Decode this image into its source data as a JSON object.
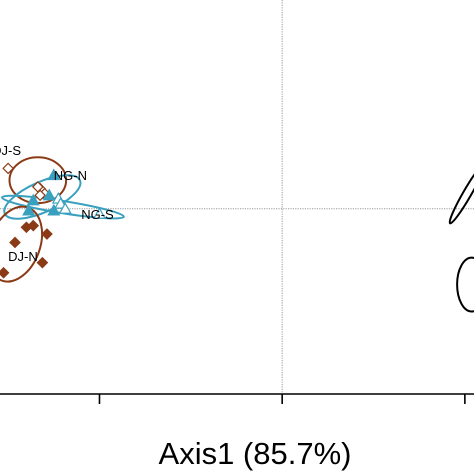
{
  "chart_data": {
    "type": "scatter",
    "xlabel": "Axis1 (85.7%)",
    "ylabel": "",
    "title": "",
    "xlim": [
      -0.62,
      0.42
    ],
    "ylim": [
      -0.55,
      0.62
    ],
    "grid": false,
    "reference_lines": {
      "x": 0,
      "y": 0
    },
    "colors": {
      "brown": "#8b3a16",
      "teal": "#3aa0bf",
      "black": "#000000"
    },
    "groups": [
      {
        "name": "DJ-S",
        "color": "#8b3a16",
        "marker": "diamond-open",
        "points": [
          [
            -0.6,
            0.12
          ],
          [
            -0.53,
            0.06
          ],
          [
            -0.535,
            0.065
          ],
          [
            -0.52,
            0.045
          ],
          [
            -0.53,
            0.04
          ]
        ],
        "ellipse": {
          "cx": -0.535,
          "cy": 0.085,
          "rx": 0.062,
          "ry": 0.068,
          "angle": 0
        }
      },
      {
        "name": "NG-N",
        "color": "#3aa0bf",
        "marker": "triangle",
        "points": [
          [
            -0.5,
            0.1
          ],
          [
            -0.545,
            0.025
          ],
          [
            -0.51,
            0.04
          ],
          [
            -0.5,
            -0.005
          ],
          [
            -0.555,
            -0.005
          ]
        ],
        "ellipse": {
          "cx": -0.525,
          "cy": 0.035,
          "rx": 0.09,
          "ry": 0.045,
          "angle": -24
        }
      },
      {
        "name": "NG-S",
        "color": "#3aa0bf",
        "marker": "triangle-open",
        "points": [
          [
            -0.49,
            0.03
          ],
          [
            -0.485,
            0.015
          ],
          [
            -0.475,
            0.0
          ],
          [
            -0.4,
            -0.015
          ]
        ],
        "ellipse": {
          "cx": -0.48,
          "cy": 0.005,
          "rx": 0.135,
          "ry": 0.018,
          "angle": 9
        }
      },
      {
        "name": "DJ-N",
        "color": "#8b3a16",
        "marker": "diamond",
        "points": [
          [
            -0.545,
            -0.05
          ],
          [
            -0.56,
            -0.055
          ],
          [
            -0.585,
            -0.1
          ],
          [
            -0.515,
            -0.075
          ],
          [
            -0.525,
            -0.16
          ],
          [
            -0.61,
            -0.19
          ]
        ],
        "ellipse": {
          "cx": -0.585,
          "cy": -0.105,
          "rx": 0.055,
          "ry": 0.115,
          "angle": 20
        }
      },
      {
        "name": "",
        "color": "#000000",
        "marker": "none",
        "points": [],
        "ellipse": {
          "cx": 0.405,
          "cy": 0.045,
          "rx": 0.075,
          "ry": 0.012,
          "angle": -60
        }
      },
      {
        "name": "",
        "color": "#000000",
        "marker": "none",
        "points": [],
        "ellipse": {
          "cx": 0.415,
          "cy": -0.225,
          "rx": 0.032,
          "ry": 0.08,
          "angle": 0
        }
      }
    ]
  }
}
